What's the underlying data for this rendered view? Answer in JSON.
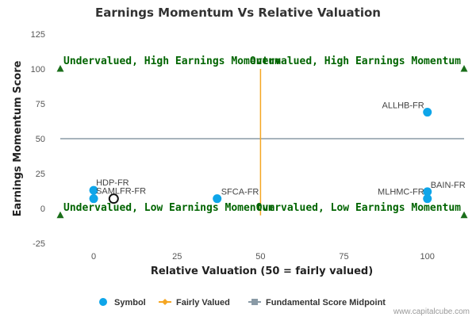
{
  "chart_data": {
    "type": "scatter",
    "title": "Earnings Momentum Vs Relative Valuation",
    "xlabel": "Relative Valuation (50 = fairly valued)",
    "ylabel": "Earnings Momentum Score",
    "xlim": [
      -10,
      111
    ],
    "ylim": [
      -25,
      125
    ],
    "x_ticks": [
      0,
      25,
      50,
      75,
      100
    ],
    "y_ticks": [
      -25,
      0,
      25,
      50,
      75,
      100,
      125
    ],
    "grid": false,
    "midpoint_y": 50,
    "fair_value_x": 50,
    "points": [
      {
        "label": "ALLHB-FR",
        "x": 100,
        "y": 69
      },
      {
        "label": "HDP-FR",
        "x": 0,
        "y": 13
      },
      {
        "label": "BAIN-FR",
        "x": 100,
        "y": 12
      },
      {
        "label": "MLHMC-FR",
        "x": 100,
        "y": 7
      },
      {
        "label": "SFCA-FR",
        "x": 37,
        "y": 7
      },
      {
        "label": "SAMLFR-FR",
        "x": 0,
        "y": 7
      }
    ],
    "highlight_point": {
      "x": 6,
      "y": 7
    },
    "quadrant_labels": [
      {
        "text": "Undervalued, High Earnings Momentum",
        "x": -10,
        "y": 100
      },
      {
        "text": "Overvalued, High Earnings Momentum",
        "x": 111,
        "y": 100
      },
      {
        "text": "Undervalued, Low Earnings Momentum",
        "x": -10,
        "y": -5
      },
      {
        "text": "Overvalued, Low Earnings Momentum",
        "x": 111,
        "y": -5
      }
    ],
    "legend": [
      {
        "name": "Symbol",
        "color": "#0ea5e9",
        "marker": "circle"
      },
      {
        "name": "Fairly Valued",
        "color": "#f5a623",
        "marker": "diamond-line"
      },
      {
        "name": "Fundamental Score Midpoint",
        "color": "#8a9aa6",
        "marker": "square-line"
      }
    ],
    "legend_position": "bottom",
    "colors": {
      "points": "#0ea5e9",
      "fair_value_line": "#f5a623",
      "midpoint_line": "#8a9aa6",
      "quadrant_text": "#006400",
      "quadrant_marker": "#1a6e1a"
    }
  },
  "credit": "www.capitalcube.com"
}
